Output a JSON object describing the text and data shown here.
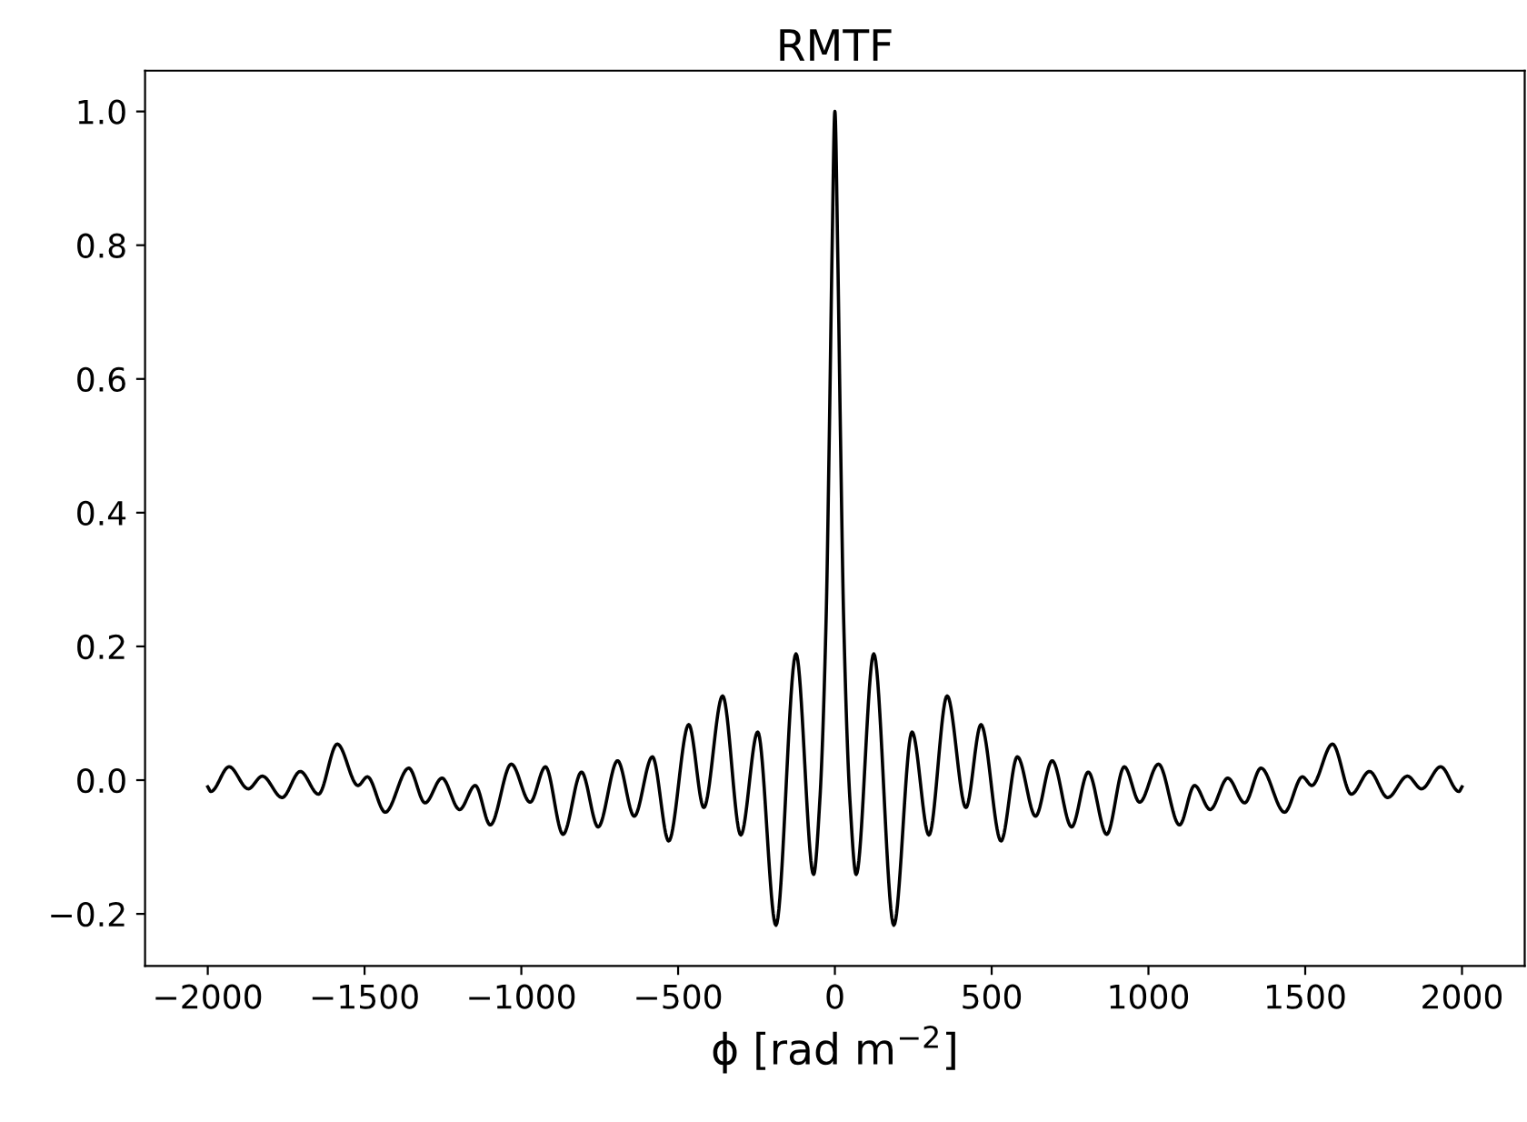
{
  "chart_data": {
    "type": "line",
    "title": "RMTF",
    "xlabel": "ϕ [rad m$^{−2}$]",
    "x": [
      -2000,
      -1990,
      -1932,
      -1871,
      -1826,
      -1763,
      -1705,
      -1647,
      -1587,
      -1521,
      -1491,
      -1434,
      -1359,
      -1307,
      -1253,
      -1197,
      -1147,
      -1099,
      -1032,
      -972,
      -923,
      -867,
      -808,
      -755,
      -693,
      -640,
      -582,
      -530,
      -466,
      -418,
      -358,
      -300,
      -246,
      -188,
      -124,
      -68,
      -48,
      -28,
      -18,
      -9,
      0,
      9,
      18,
      28,
      48,
      68,
      124,
      188,
      246,
      300,
      358,
      418,
      466,
      530,
      582,
      640,
      693,
      755,
      808,
      867,
      923,
      972,
      1032,
      1099,
      1147,
      1197,
      1253,
      1307,
      1359,
      1434,
      1491,
      1521,
      1587,
      1647,
      1705,
      1763,
      1826,
      1871,
      1932,
      1990,
      2000
    ],
    "series": [
      {
        "color": "#000000",
        "values": [
          -0.01,
          -0.017,
          0.02,
          -0.013,
          0.006,
          -0.026,
          0.013,
          -0.021,
          0.054,
          -0.008,
          0.005,
          -0.048,
          0.018,
          -0.034,
          0.003,
          -0.044,
          -0.008,
          -0.067,
          0.024,
          -0.033,
          0.02,
          -0.081,
          0.012,
          -0.07,
          0.029,
          -0.054,
          0.035,
          -0.091,
          0.083,
          -0.041,
          0.126,
          -0.082,
          0.072,
          -0.217,
          0.189,
          -0.141,
          -0.03,
          0.24,
          0.51,
          0.79,
          1.0,
          0.79,
          0.51,
          0.24,
          -0.03,
          -0.141,
          0.189,
          -0.217,
          0.072,
          -0.082,
          0.126,
          -0.041,
          0.083,
          -0.091,
          0.035,
          -0.054,
          0.029,
          -0.07,
          0.012,
          -0.081,
          0.02,
          -0.033,
          0.024,
          -0.067,
          -0.008,
          -0.044,
          0.003,
          -0.034,
          0.018,
          -0.048,
          0.005,
          -0.008,
          0.054,
          -0.021,
          0.013,
          -0.026,
          0.006,
          -0.013,
          0.02,
          -0.017,
          -0.01
        ]
      }
    ],
    "xlim": [
      -2200,
      2200
    ],
    "ylim": [
      -0.278,
      1.061
    ],
    "xticks": [
      {
        "value": -2000,
        "label": "−2000"
      },
      {
        "value": -1500,
        "label": "−1500"
      },
      {
        "value": -1000,
        "label": "−1000"
      },
      {
        "value": -500,
        "label": "−500"
      },
      0,
      500,
      1000,
      1500,
      2000
    ],
    "yticks": [
      {
        "value": -0.2,
        "label": "−0.2"
      },
      {
        "value": 0,
        "label": "0.0"
      },
      0.2,
      0.4,
      0.6,
      0.8,
      {
        "value": 1,
        "label": "1.0"
      }
    ],
    "grid": false,
    "marker": "none",
    "line_style": "solid"
  }
}
